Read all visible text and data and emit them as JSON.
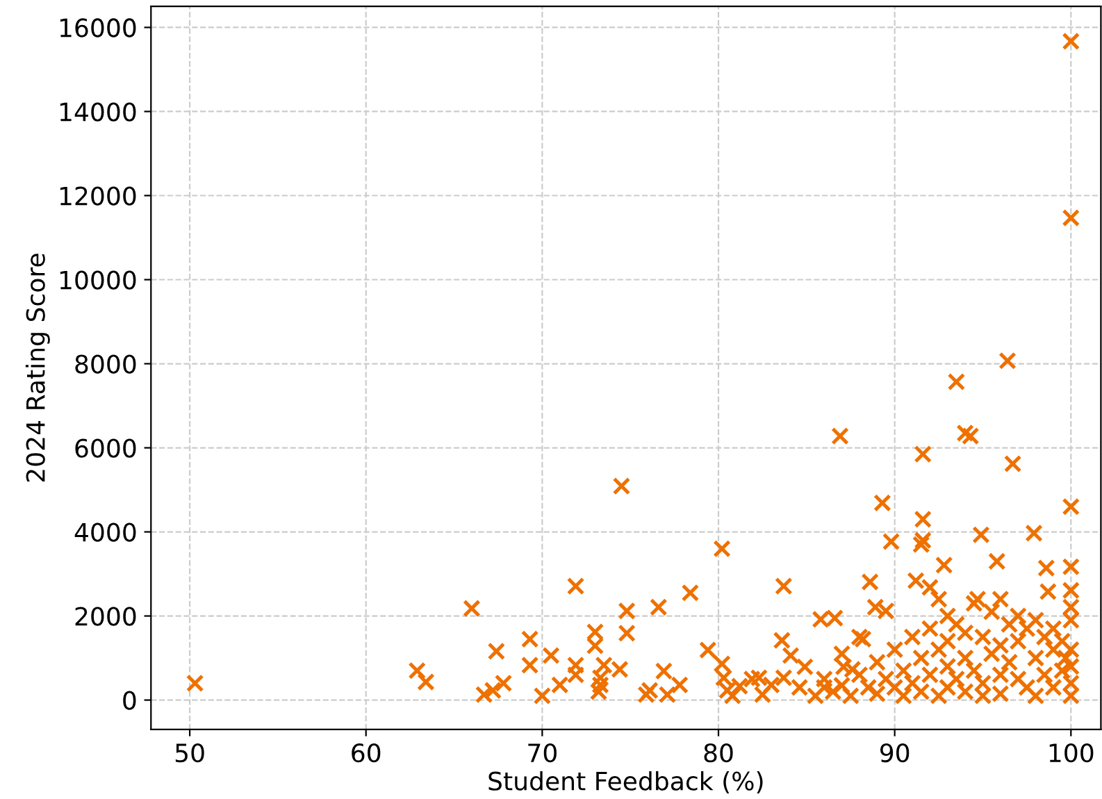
{
  "chart_data": {
    "type": "scatter",
    "xlabel": "Student Feedback (%)",
    "ylabel": "2024 Rating Score",
    "marker": "cross",
    "grid": true,
    "xlim": [
      47.8,
      101.7
    ],
    "ylim": [
      -700,
      16500
    ],
    "xticks": [
      50,
      60,
      70,
      80,
      90,
      100
    ],
    "yticks": [
      0,
      2000,
      4000,
      6000,
      8000,
      10000,
      12000,
      14000,
      16000
    ],
    "series": [
      {
        "color": "#ee7100",
        "x": [
          50.3,
          62.9,
          63.4,
          66.0,
          66.7,
          67.2,
          67.4,
          67.8,
          69.3,
          69.3,
          70.0,
          70.5,
          71.0,
          71.9,
          71.9,
          71.9,
          73.0,
          73.0,
          73.2,
          73.3,
          73.5,
          73.3,
          74.4,
          74.5,
          74.8,
          74.8,
          75.9,
          76.1,
          76.6,
          76.9,
          77.1,
          77.8,
          78.4,
          79.4,
          80.2,
          80.2,
          80.3,
          80.5,
          80.8,
          81.2,
          81.9,
          82.3,
          82.5,
          83.0,
          83.6,
          83.7,
          83.7,
          84.1,
          84.6,
          84.9,
          85.8,
          86.0,
          86.6,
          86.9,
          87.1,
          87.6,
          88.2,
          88.6,
          88.9,
          89.3,
          89.5,
          89.8,
          91.2,
          91.6,
          91.6,
          91.6,
          91.5,
          92.0,
          92.8,
          93.5,
          94.0,
          94.3,
          94.9,
          96.4,
          96.7,
          97.9,
          98.6,
          98.7,
          100,
          100,
          100,
          100,
          100,
          100,
          85.5,
          86,
          86.5,
          87,
          87.5,
          88,
          88.5,
          89,
          89,
          89.5,
          90,
          90,
          90.5,
          90.5,
          91,
          91,
          91.5,
          91.5,
          92,
          92,
          92.5,
          92.5,
          93,
          93,
          93,
          93.5,
          93.5,
          94,
          94,
          94,
          94.5,
          94.5,
          95,
          95,
          95,
          95.5,
          95.5,
          96,
          96,
          96,
          96,
          96.5,
          96.5,
          97,
          97,
          97,
          97.5,
          97.5,
          98,
          98,
          98,
          98.5,
          98.5,
          99,
          99,
          99,
          99.5,
          99.5,
          100,
          100,
          100,
          100,
          100,
          99.7,
          95.8,
          94.7,
          93,
          92.5,
          88,
          87
        ],
        "values": [
          400,
          700,
          430,
          2180,
          130,
          230,
          1160,
          400,
          1450,
          830,
          100,
          1060,
          360,
          2710,
          830,
          600,
          1620,
          1290,
          200,
          360,
          830,
          530,
          730,
          5090,
          2120,
          1590,
          130,
          230,
          2210,
          690,
          130,
          360,
          2550,
          1190,
          3600,
          860,
          530,
          230,
          100,
          330,
          500,
          530,
          130,
          360,
          1420,
          2710,
          530,
          1060,
          300,
          790,
          1920,
          300,
          1950,
          6280,
          790,
          730,
          1450,
          2810,
          2210,
          4690,
          2120,
          3770,
          2840,
          5850,
          4300,
          3800,
          3700,
          2680,
          3210,
          7570,
          6350,
          6280,
          3930,
          8070,
          5620,
          3970,
          3140,
          2580,
          15670,
          11470,
          4600,
          3170,
          2610,
          2210,
          100,
          500,
          200,
          350,
          100,
          600,
          300,
          900,
          150,
          500,
          1200,
          300,
          700,
          100,
          1500,
          400,
          1000,
          200,
          1700,
          600,
          1200,
          100,
          1400,
          800,
          300,
          1800,
          500,
          1600,
          1000,
          200,
          2300,
          700,
          1500,
          400,
          100,
          2100,
          1100,
          2400,
          1300,
          600,
          150,
          1800,
          900,
          2000,
          1400,
          500,
          1700,
          300,
          1900,
          1000,
          100,
          1500,
          600,
          1700,
          1200,
          300,
          1400,
          700,
          1900,
          1200,
          800,
          400,
          100,
          1000,
          3300,
          2400,
          2000,
          2400,
          1500,
          1100
        ]
      }
    ]
  }
}
